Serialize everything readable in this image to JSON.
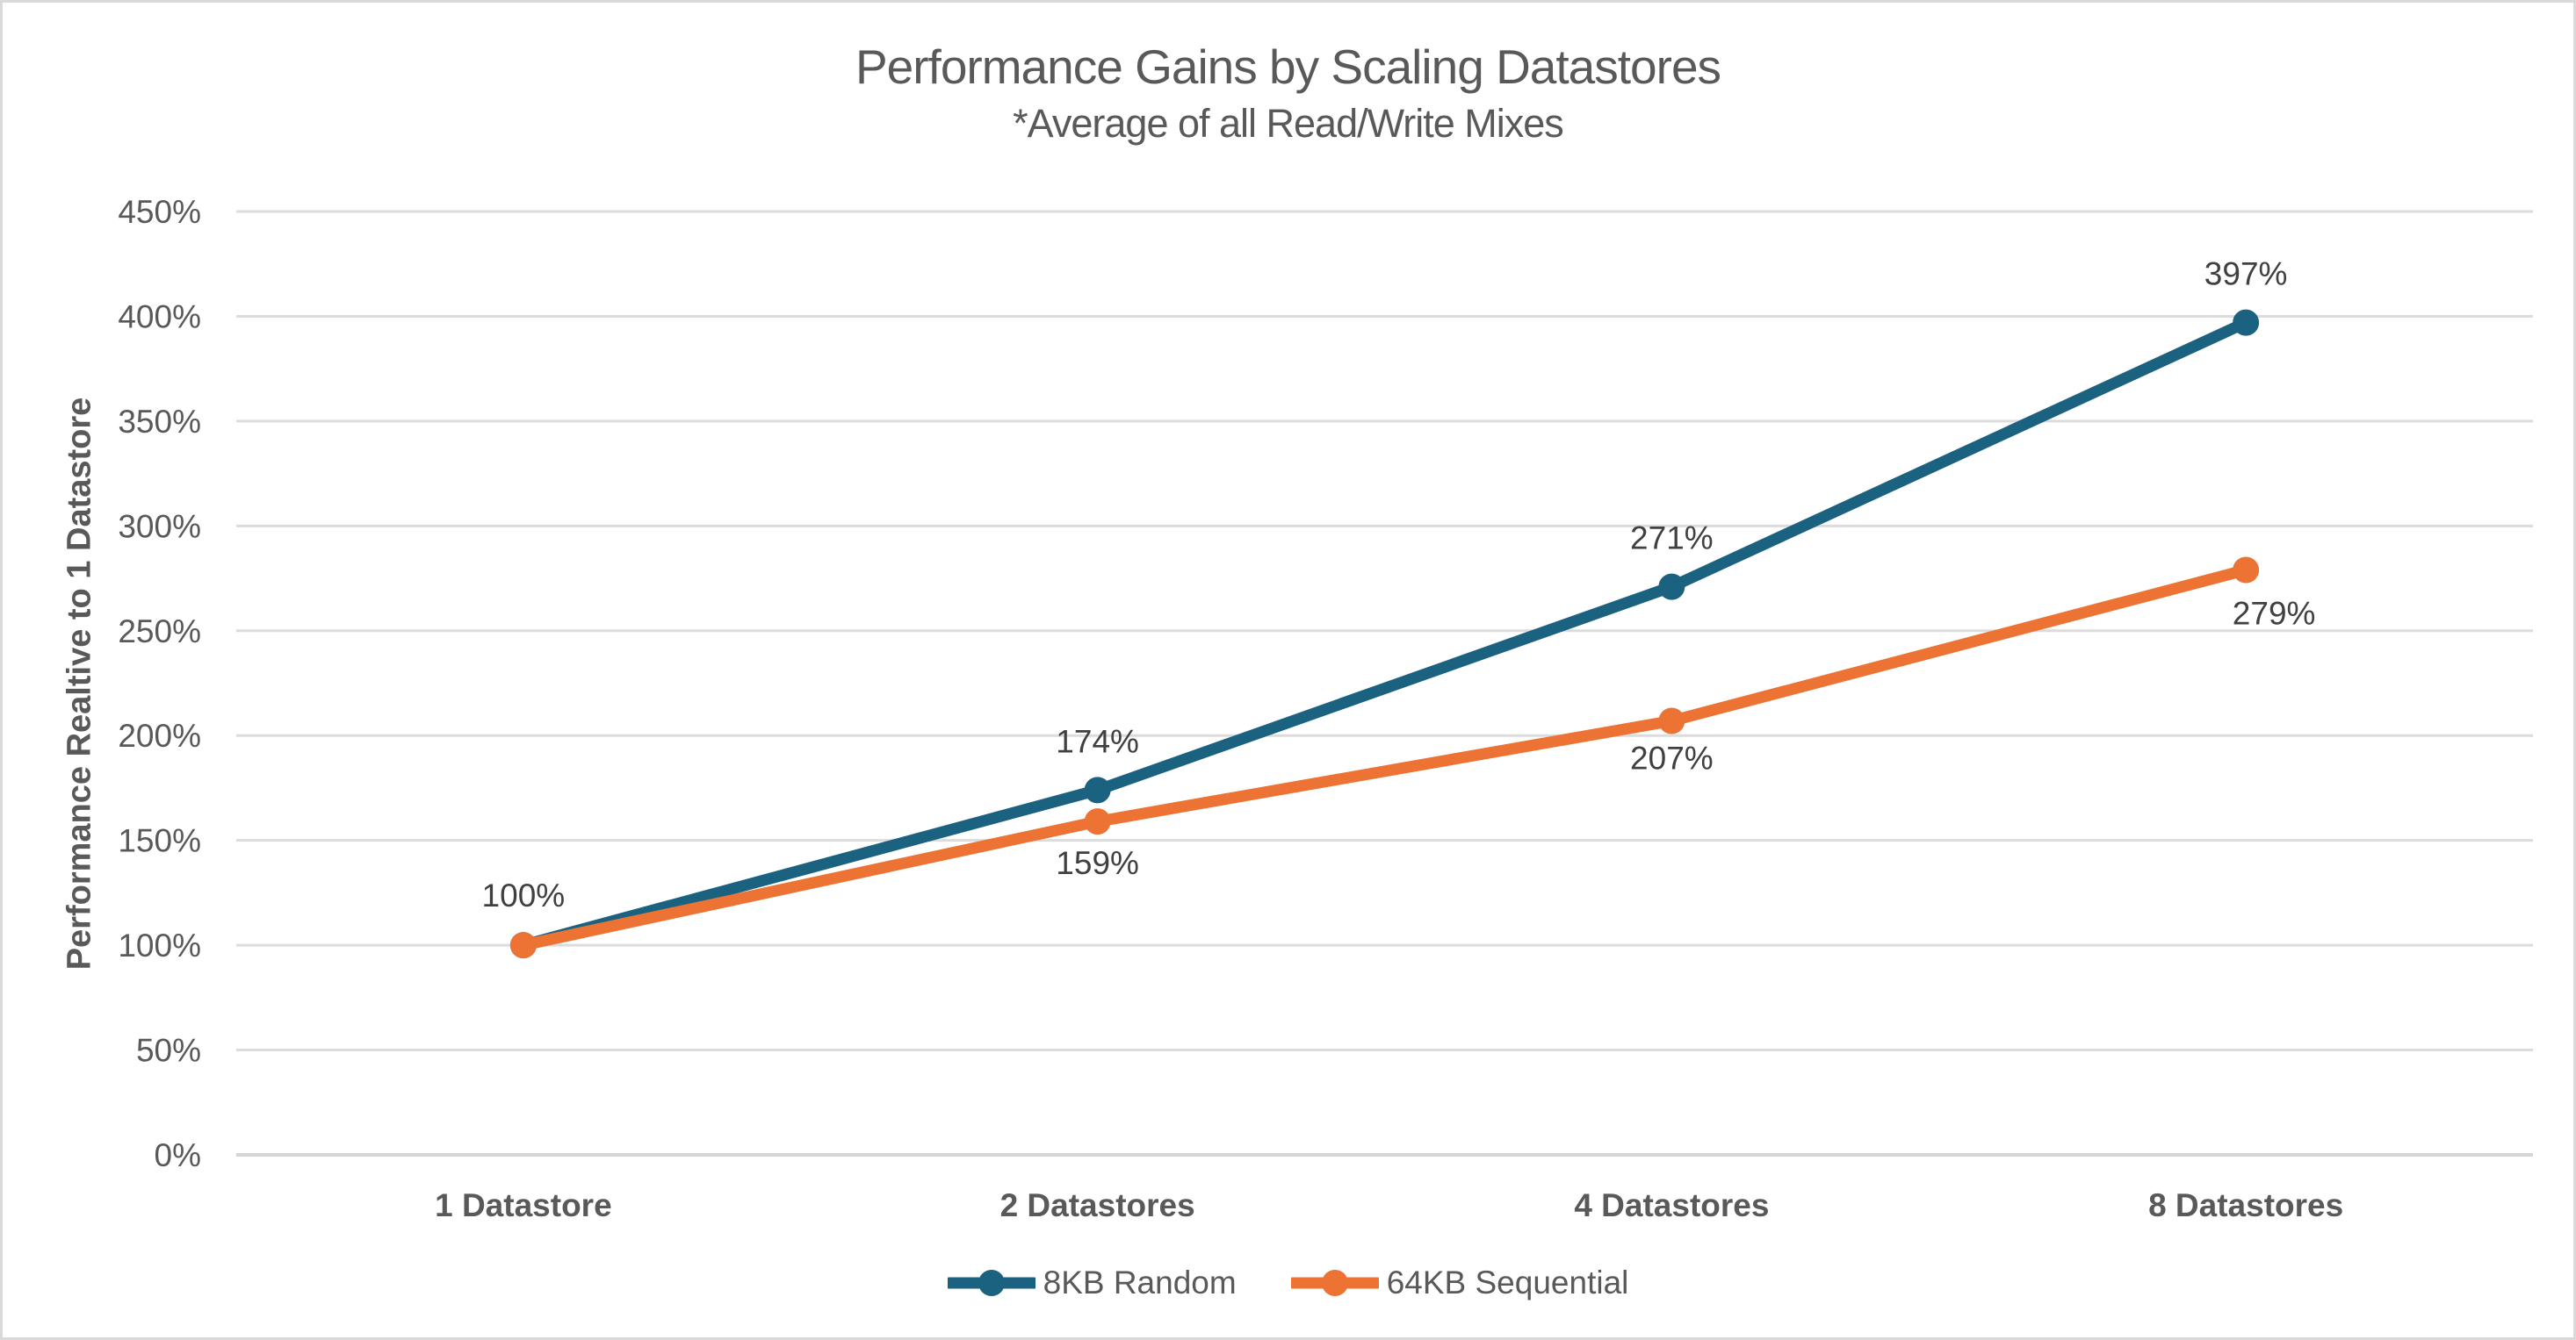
{
  "chart_data": {
    "type": "line",
    "title": "Performance Gains by Scaling Datastores",
    "subtitle": "*Average of all Read/Write Mixes",
    "ylabel": "Performance Realtive to 1 Datastore",
    "xlabel": "",
    "categories": [
      "1 Datastore",
      "2 Datastores",
      "4 Datastores",
      "8 Datastores"
    ],
    "series": [
      {
        "name": "8KB Random",
        "color": "#1b6180",
        "values": [
          100,
          174,
          271,
          397
        ],
        "point_labels": [
          "100%",
          "174%",
          "271%",
          "397%"
        ],
        "label_side": "above"
      },
      {
        "name": "64KB Sequential",
        "color": "#ec7333",
        "values": [
          100,
          159,
          207,
          279
        ],
        "point_labels": [
          null,
          "159%",
          "207%",
          "279%"
        ],
        "label_side": "below"
      }
    ],
    "ylim": [
      0,
      450
    ],
    "ytick_step": 50,
    "ytick_labels": [
      "450%",
      "400%",
      "350%",
      "300%",
      "250%",
      "200%",
      "150%",
      "100%",
      "50%",
      "0%"
    ],
    "grid": true,
    "legend_position": "bottom"
  },
  "colors": {
    "background": "#ffffff",
    "border": "#d9d9d9",
    "gridline": "#dcdcdc",
    "axis_line": "#d5d5d5",
    "tick_text": "#595959",
    "category_text": "#595959",
    "data_label_text": "#404040",
    "title_text": "#595959"
  }
}
